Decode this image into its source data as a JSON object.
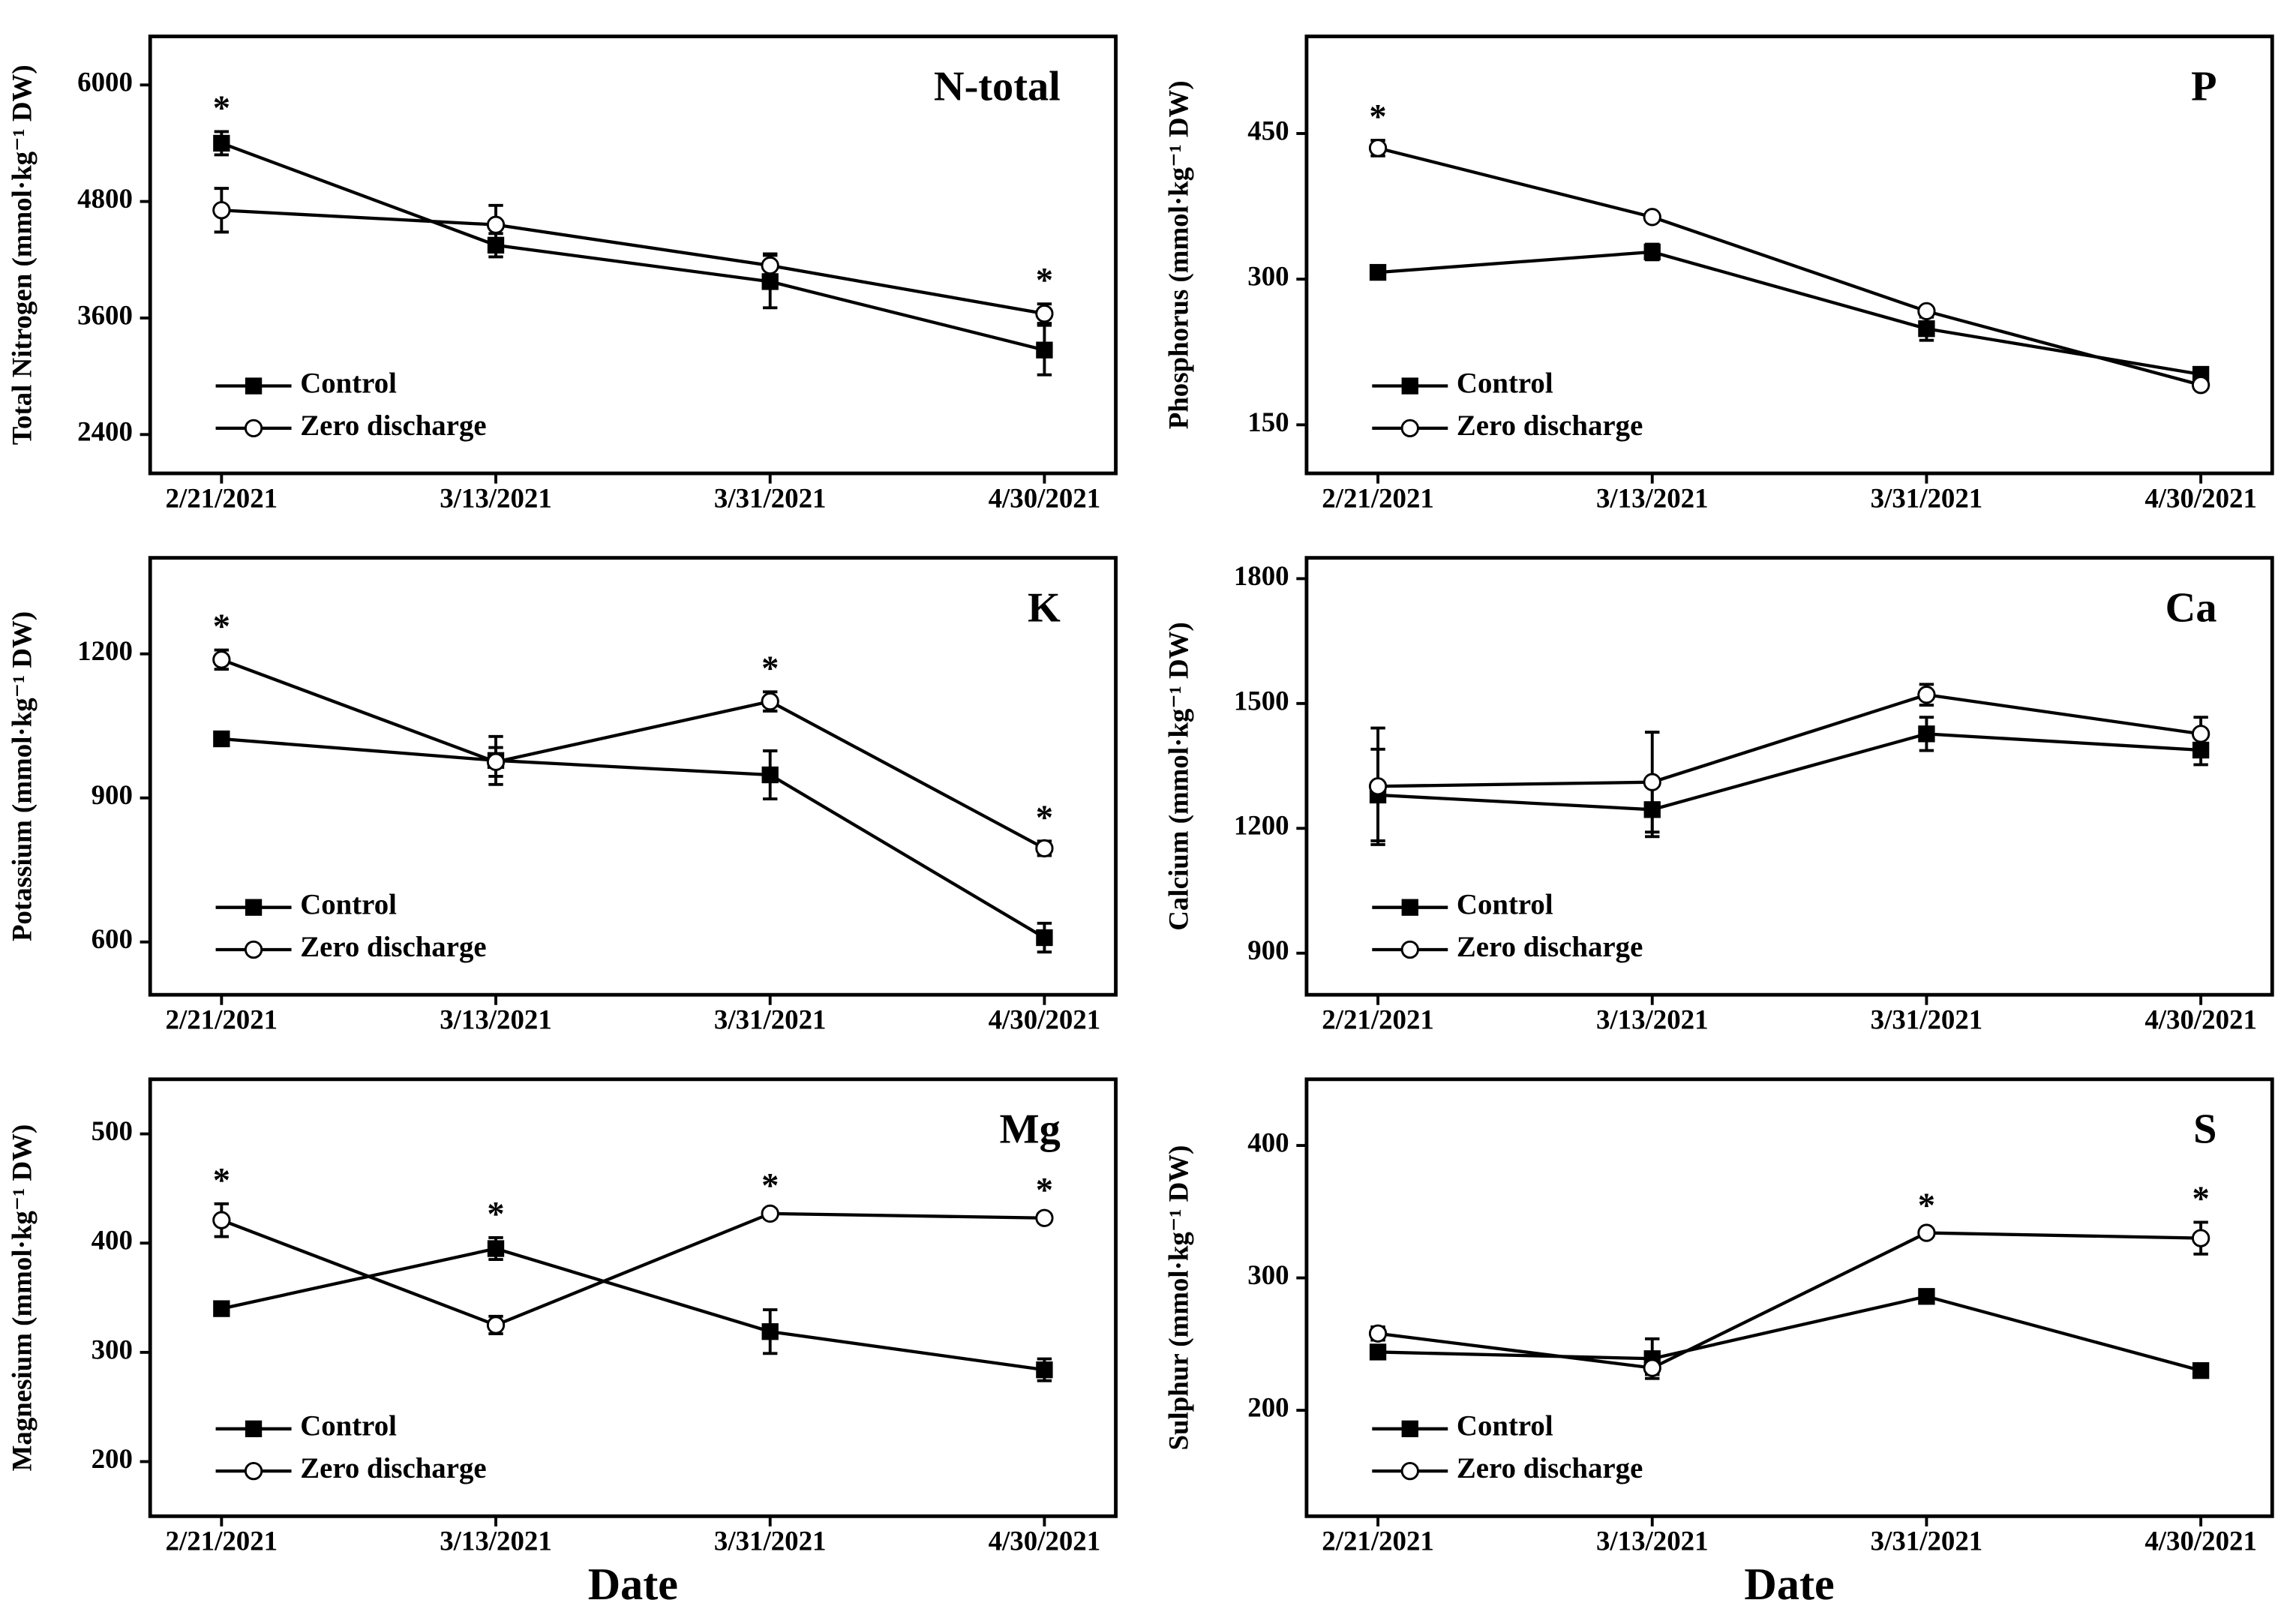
{
  "chart_data": [
    {
      "type": "line",
      "title": "N-total",
      "ylabel": "Total Nitrogen (mmol·kg⁻¹ DW)",
      "categories": [
        "2/21/2021",
        "3/13/2021",
        "3/31/2021",
        "4/30/2021"
      ],
      "series": [
        {
          "name": "Control",
          "color": "#000000",
          "marker": "square",
          "marker_fill": "#000000",
          "values": [
            5400,
            4350,
            3975,
            3270
          ],
          "errors": [
            120,
            120,
            270,
            255
          ]
        },
        {
          "name": "Zero discharge",
          "color": "#000000",
          "marker": "circle",
          "marker_fill": "#ffffff",
          "values": [
            4710,
            4560,
            4140,
            3645
          ],
          "errors": [
            225,
            200,
            120,
            100
          ]
        }
      ],
      "annotations": [
        "*",
        null,
        null,
        "*"
      ],
      "ylim": [
        2000,
        6500
      ],
      "yticks": [
        2400,
        3600,
        4800,
        6000
      ],
      "legend": "lower left"
    },
    {
      "type": "line",
      "title": "P",
      "ylabel": "Phosphorus (mmol·kg⁻¹ DW)",
      "categories": [
        "2/21/2021",
        "3/13/2021",
        "3/31/2021",
        "4/30/2021"
      ],
      "series": [
        {
          "name": "Control",
          "color": "#000000",
          "marker": "square",
          "marker_fill": "#000000",
          "values": [
            307,
            328,
            249,
            202
          ],
          "errors": [
            3,
            8,
            12,
            5
          ]
        },
        {
          "name": "Zero discharge",
          "color": "#000000",
          "marker": "circle",
          "marker_fill": "#ffffff",
          "values": [
            435,
            364,
            267,
            191
          ],
          "errors": [
            8,
            4,
            4,
            4
          ]
        }
      ],
      "annotations": [
        "*",
        null,
        null,
        null
      ],
      "ylim": [
        100,
        550
      ],
      "yticks": [
        150,
        300,
        450
      ],
      "legend": "lower left"
    },
    {
      "type": "line",
      "title": "K",
      "ylabel": "Potassium (mmol·kg⁻¹ DW)",
      "categories": [
        "2/21/2021",
        "3/13/2021",
        "3/31/2021",
        "4/30/2021"
      ],
      "series": [
        {
          "name": "Control",
          "color": "#000000",
          "marker": "square",
          "marker_fill": "#000000",
          "values": [
            1023,
            978,
            948,
            609
          ],
          "errors": [
            10,
            50,
            50,
            30
          ]
        },
        {
          "name": "Zero discharge",
          "color": "#000000",
          "marker": "circle",
          "marker_fill": "#ffffff",
          "values": [
            1188,
            975,
            1101,
            795
          ],
          "errors": [
            20,
            30,
            20,
            15
          ]
        }
      ],
      "annotations": [
        "*",
        null,
        "*",
        "*"
      ],
      "ylim": [
        490,
        1400
      ],
      "yticks": [
        600,
        900,
        1200
      ],
      "legend": "lower left"
    },
    {
      "type": "line",
      "title": "Ca",
      "ylabel": "Calcium (mmol·kg⁻¹ DW)",
      "categories": [
        "2/21/2021",
        "3/13/2021",
        "3/31/2021",
        "4/30/2021"
      ],
      "series": [
        {
          "name": "Control",
          "color": "#000000",
          "marker": "square",
          "marker_fill": "#000000",
          "values": [
            1280,
            1245,
            1427,
            1388
          ],
          "errors": [
            110,
            65,
            40,
            35
          ]
        },
        {
          "name": "Zero discharge",
          "color": "#000000",
          "marker": "circle",
          "marker_fill": "#ffffff",
          "values": [
            1301,
            1311,
            1521,
            1427
          ],
          "errors": [
            140,
            120,
            25,
            40
          ]
        }
      ],
      "ylim": [
        800,
        1850
      ],
      "yticks": [
        900,
        1200,
        1500,
        1800
      ],
      "legend": "lower left"
    },
    {
      "type": "line",
      "title": "Mg",
      "ylabel": "Magnesium (mmol·kg⁻¹ DW)",
      "xlabel": "Date",
      "categories": [
        "2/21/2021",
        "3/13/2021",
        "3/31/2021",
        "4/30/2021"
      ],
      "series": [
        {
          "name": "Control",
          "color": "#000000",
          "marker": "square",
          "marker_fill": "#000000",
          "values": [
            340,
            395,
            319,
            284
          ],
          "errors": [
            5,
            10,
            20,
            10
          ]
        },
        {
          "name": "Zero discharge",
          "color": "#000000",
          "marker": "circle",
          "marker_fill": "#ffffff",
          "values": [
            421,
            325,
            427,
            423
          ],
          "errors": [
            15,
            8,
            4,
            4
          ]
        }
      ],
      "annotations": [
        "*",
        "*",
        "*",
        "*"
      ],
      "ylim": [
        150,
        550
      ],
      "yticks": [
        200,
        300,
        400,
        500
      ],
      "legend": "lower left"
    },
    {
      "type": "line",
      "title": "S",
      "ylabel": "Sulphur (mmol·kg⁻¹ DW)",
      "xlabel": "Date",
      "categories": [
        "2/21/2021",
        "3/13/2021",
        "3/31/2021",
        "4/30/2021"
      ],
      "series": [
        {
          "name": "Control",
          "color": "#000000",
          "marker": "square",
          "marker_fill": "#000000",
          "values": [
            244,
            239,
            286,
            230
          ],
          "errors": [
            4,
            15,
            5,
            3
          ]
        },
        {
          "name": "Zero discharge",
          "color": "#000000",
          "marker": "circle",
          "marker_fill": "#ffffff",
          "values": [
            258,
            232,
            334,
            330
          ],
          "errors": [
            5,
            5,
            3,
            12
          ]
        }
      ],
      "annotations": [
        null,
        null,
        "*",
        "*"
      ],
      "ylim": [
        120,
        450
      ],
      "yticks": [
        200,
        300,
        400
      ],
      "legend": "lower left"
    }
  ]
}
